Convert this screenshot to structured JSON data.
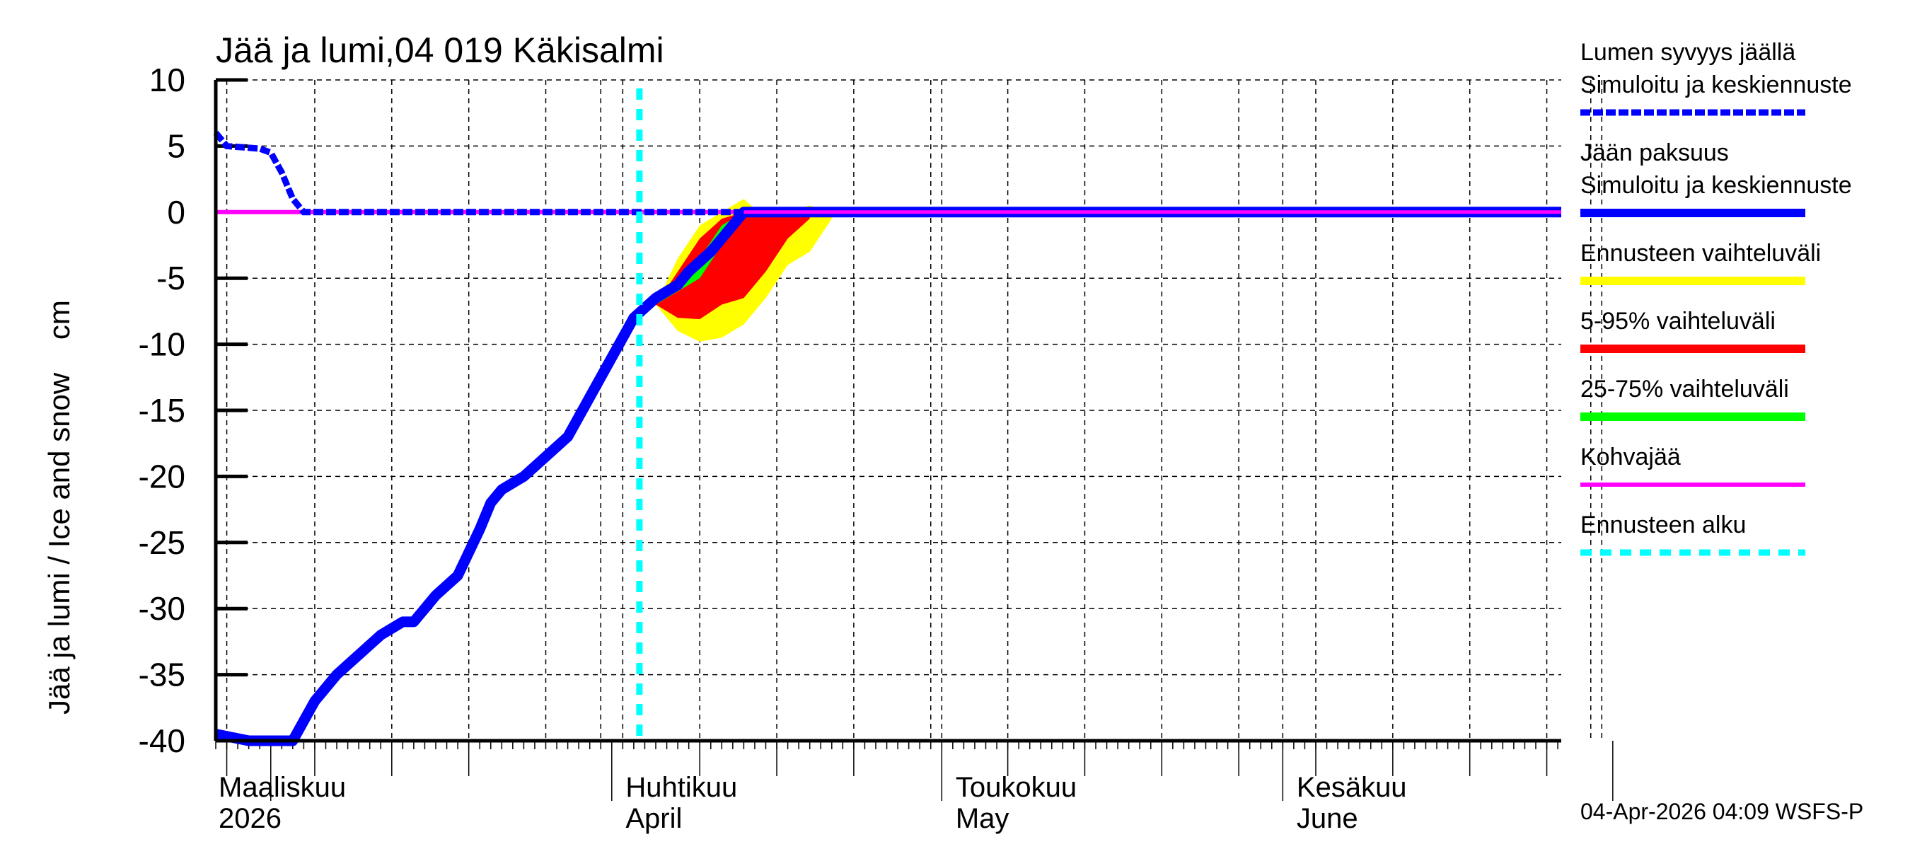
{
  "chart_data": {
    "type": "line",
    "title": "Jää ja lumi,04 019 Käkisalmi",
    "ylabel": "Jää ja lumi / Ice and snow    cm",
    "xlabel": "",
    "ylim": [
      -40,
      10
    ],
    "yticks": [
      10,
      5,
      0,
      -5,
      -10,
      -15,
      -20,
      -25,
      -30,
      -35,
      -40
    ],
    "grid": true,
    "legend_position": "right",
    "x_months": [
      {
        "fi": "Maaliskuu",
        "en": "2026"
      },
      {
        "fi": "Huhtikuu",
        "en": "April"
      },
      {
        "fi": "Toukokuu",
        "en": "May"
      },
      {
        "fi": "Kesäkuu",
        "en": "June"
      }
    ],
    "forecast_start": "2026-04-03",
    "series": [
      {
        "name": "Lumen syvyys jäällä – Simuloitu ja keskiennuste",
        "style": "dashed",
        "color": "#0000ff",
        "x": [
          "2026-02-24",
          "2026-02-25",
          "2026-02-28",
          "2026-03-01",
          "2026-03-02",
          "2026-03-03",
          "2026-03-04",
          "2026-03-05",
          "2026-07-01"
        ],
        "values": [
          6,
          5,
          4.8,
          4.5,
          3,
          1,
          0,
          0,
          0
        ]
      },
      {
        "name": "Jään paksuus – Simuloitu ja keskiennuste",
        "style": "solid",
        "color": "#0000ff",
        "x": [
          "2026-02-24",
          "2026-02-27",
          "2026-03-01",
          "2026-03-03",
          "2026-03-05",
          "2026-03-07",
          "2026-03-09",
          "2026-03-11",
          "2026-03-13",
          "2026-03-14",
          "2026-03-16",
          "2026-03-18",
          "2026-03-20",
          "2026-03-21",
          "2026-03-22",
          "2026-03-23",
          "2026-03-24",
          "2026-03-26",
          "2026-03-28",
          "2026-03-30",
          "2026-04-01",
          "2026-04-03",
          "2026-04-05",
          "2026-04-07",
          "2026-04-08",
          "2026-04-10",
          "2026-04-12",
          "2026-04-13",
          "2026-04-15",
          "2026-07-01"
        ],
        "values": [
          -39.5,
          -40,
          -40,
          -40,
          -37,
          -35,
          -33.5,
          -32,
          -31,
          -31,
          -29,
          -27.5,
          -24,
          -22,
          -21,
          -20.5,
          -20,
          -18.5,
          -17,
          -14,
          -11,
          -8,
          -6.5,
          -5.5,
          -4.5,
          -3,
          -1,
          0,
          0,
          0
        ]
      },
      {
        "name": "Ennusteen vaihteluväli",
        "style": "band",
        "color": "#ffff00",
        "x": [
          "2026-04-05",
          "2026-04-07",
          "2026-04-09",
          "2026-04-11",
          "2026-04-13",
          "2026-04-15",
          "2026-04-17",
          "2026-04-19",
          "2026-04-21"
        ],
        "upper": [
          -7,
          -3.5,
          -1,
          0,
          1,
          -0.5,
          0,
          0.5,
          0
        ],
        "lower": [
          -7,
          -9,
          -9.8,
          -9.5,
          -8.5,
          -6.5,
          -4,
          -3,
          -0.5
        ]
      },
      {
        "name": "5-95% vaihteluväli",
        "style": "band",
        "color": "#ff0000",
        "x": [
          "2026-04-05",
          "2026-04-07",
          "2026-04-09",
          "2026-04-11",
          "2026-04-13",
          "2026-04-15",
          "2026-04-17",
          "2026-04-19"
        ],
        "upper": [
          -7,
          -4.5,
          -2,
          -0.5,
          0,
          0,
          0,
          0
        ],
        "lower": [
          -7,
          -8,
          -8.1,
          -7,
          -6.5,
          -4.5,
          -2,
          -0.5
        ]
      },
      {
        "name": "25-75% vaihteluväli",
        "style": "band",
        "color": "#00ff00",
        "x": [
          "2026-04-05",
          "2026-04-07",
          "2026-04-09",
          "2026-04-11",
          "2026-04-13"
        ],
        "upper": [
          -6.5,
          -5,
          -3.5,
          -1,
          0
        ],
        "lower": [
          -7,
          -6,
          -5,
          -2.5,
          0
        ]
      },
      {
        "name": "Kohvajää",
        "style": "solid",
        "color": "#ff00ff",
        "x": [
          "2026-02-24",
          "2026-07-01"
        ],
        "values": [
          0,
          0
        ]
      },
      {
        "name": "Ennusteen alku",
        "style": "dotted-vertical",
        "color": "#00ffff",
        "x": [
          "2026-04-03"
        ]
      }
    ]
  },
  "legend": {
    "items": [
      {
        "line1": "Lumen syvyys jäällä",
        "line2": "Simuloitu ja keskiennuste",
        "color": "#0000ff",
        "style": "dashed"
      },
      {
        "line1": "Jään paksuus",
        "line2": "Simuloitu ja keskiennuste",
        "color": "#0000ff",
        "style": "solid"
      },
      {
        "line1": "Ennusteen vaihteluväli",
        "line2": "",
        "color": "#ffff00",
        "style": "solid"
      },
      {
        "line1": "5-95% vaihteluväli",
        "line2": "",
        "color": "#ff0000",
        "style": "solid"
      },
      {
        "line1": "25-75% vaihteluväli",
        "line2": "",
        "color": "#00ff00",
        "style": "solid"
      },
      {
        "line1": "Kohvajää",
        "line2": "",
        "color": "#ff00ff",
        "style": "thin"
      },
      {
        "line1": "Ennusteen alku",
        "line2": "",
        "color": "#00ffff",
        "style": "dotted"
      }
    ]
  },
  "footer": {
    "timestamp": "04-Apr-2026 04:09 WSFS-P"
  }
}
